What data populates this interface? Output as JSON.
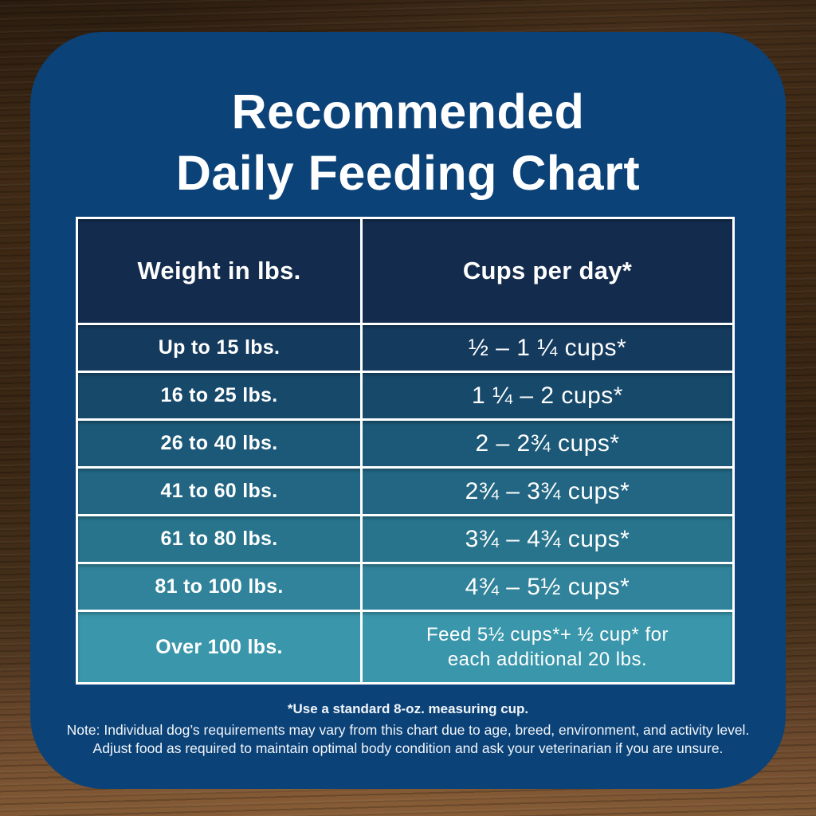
{
  "chart_data": {
    "type": "table",
    "title": "Recommended Daily Feeding Chart",
    "columns": [
      "Weight in lbs.",
      "Cups per day*"
    ],
    "rows": [
      [
        "Up to 15 lbs.",
        "½ – 1 ¼ cups*"
      ],
      [
        "16 to 25 lbs.",
        "1 ¼ – 2 cups*"
      ],
      [
        "26 to 40 lbs.",
        "2 – 2¾ cups*"
      ],
      [
        "41 to 60 lbs.",
        "2¾ – 3¾ cups*"
      ],
      [
        "61 to 80 lbs.",
        "3¾ – 4¾ cups*"
      ],
      [
        "81 to 100 lbs.",
        "4¾ – 5½ cups*"
      ],
      [
        "Over 100 lbs.",
        "Feed 5½ cups*+ ½ cup* for\neach additional 20 lbs."
      ]
    ]
  },
  "header": {
    "title_line1": "Recommended",
    "title_line2": "Daily Feeding Chart"
  },
  "footnotes": {
    "measuring_cup": "*Use a standard 8-oz. measuring cup.",
    "note_line1": "Note: Individual dog’s requirements may vary from this chart due to age, breed, environment, and activity level.",
    "note_line2": "Adjust food as required to maintain optimal body condition and ask your veterinarian if you are unsure."
  },
  "colors": {
    "panel_blue": "#0B4278",
    "table_header_navy": "#132C4E",
    "row_backgrounds": [
      "#143A5E",
      "#17496B",
      "#1C5877",
      "#226683",
      "#28748C",
      "#30839A",
      "#3996AB"
    ],
    "border_white": "#FFFFFF",
    "text_white": "#FFFFFF",
    "wood_dark": "#2C1D10",
    "wood_light": "#7A5433"
  }
}
